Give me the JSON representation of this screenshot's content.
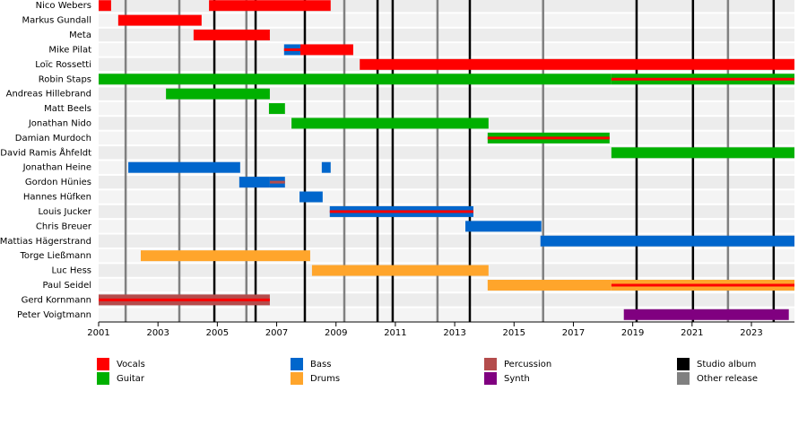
{
  "chart_data": {
    "type": "timeline",
    "xlim": [
      2001,
      2024.45
    ],
    "xticks": [
      2001,
      2003,
      2005,
      2007,
      2009,
      2011,
      2013,
      2015,
      2017,
      2019,
      2021,
      2023
    ],
    "roles": [
      {
        "name": "Vocals",
        "color": "#ff0000"
      },
      {
        "name": "Guitar",
        "color": "#00b000"
      },
      {
        "name": "Bass",
        "color": "#0066cc"
      },
      {
        "name": "Drums",
        "color": "#ffa52b"
      },
      {
        "name": "Percussion",
        "color": "#b44c4c"
      },
      {
        "name": "Synth",
        "color": "#800080"
      }
    ],
    "events": [
      {
        "name": "Studio album",
        "color": "#000000",
        "x": [
          2004.9,
          2006.29,
          2007.95,
          2010.4,
          2010.91,
          2013.51,
          2019.13,
          2021.03,
          2023.75
        ]
      },
      {
        "name": "Other release",
        "color": "#808080",
        "x": [
          2001.91,
          2003.72,
          2005.98,
          2009.28,
          2012.42,
          2015.98,
          2022.21
        ]
      }
    ],
    "members": [
      {
        "name": "Nico Webers",
        "bars": [
          {
            "role": "Vocals",
            "start": 2001,
            "end": 2001.42
          },
          {
            "role": "Vocals",
            "start": 2004.72,
            "end": 2008.82
          }
        ]
      },
      {
        "name": "Markus Gundall",
        "bars": [
          {
            "role": "Vocals",
            "start": 2001.66,
            "end": 2004.47
          }
        ]
      },
      {
        "name": "Meta",
        "bars": [
          {
            "role": "Vocals",
            "start": 2004.2,
            "end": 2006.77
          }
        ]
      },
      {
        "name": "Mike Pilat",
        "bars": [
          {
            "role": "Bass",
            "stripe": "Vocals",
            "start": 2007.25,
            "end": 2007.8
          },
          {
            "role": "Vocals",
            "start": 2007.8,
            "end": 2009.58
          }
        ]
      },
      {
        "name": "Loïc Rossetti",
        "bars": [
          {
            "role": "Vocals",
            "start": 2009.8,
            "end": 2024.45
          }
        ]
      },
      {
        "name": "Robin Staps",
        "bars": [
          {
            "role": "Guitar",
            "start": 2001,
            "end": 2018.28
          },
          {
            "role": "Guitar",
            "stripe": "Vocals",
            "start": 2018.28,
            "end": 2024.45
          }
        ]
      },
      {
        "name": "Andreas Hillebrand",
        "bars": [
          {
            "role": "Guitar",
            "start": 2003.27,
            "end": 2006.77
          }
        ]
      },
      {
        "name": "Matt Beels",
        "bars": [
          {
            "role": "Guitar",
            "start": 2006.74,
            "end": 2007.28
          }
        ]
      },
      {
        "name": "Jonathan Nido",
        "bars": [
          {
            "role": "Guitar",
            "start": 2007.5,
            "end": 2014.14
          }
        ]
      },
      {
        "name": "Damian Murdoch",
        "bars": [
          {
            "role": "Guitar",
            "stripe": "Vocals",
            "start": 2014.11,
            "end": 2018.22
          }
        ]
      },
      {
        "name": "David Ramis Åhfeldt",
        "bars": [
          {
            "role": "Guitar",
            "start": 2018.28,
            "end": 2024.45
          }
        ]
      },
      {
        "name": "Jonathan Heine",
        "bars": [
          {
            "role": "Bass",
            "start": 2002.0,
            "end": 2005.77
          },
          {
            "role": "Bass",
            "start": 2008.52,
            "end": 2008.82
          }
        ]
      },
      {
        "name": "Gordon Hünies",
        "bars": [
          {
            "role": "Bass",
            "start": 2005.74,
            "end": 2006.77
          },
          {
            "role": "Bass",
            "stripe": "Percussion",
            "start": 2006.77,
            "end": 2007.28
          }
        ]
      },
      {
        "name": "Hannes Hüfken",
        "bars": [
          {
            "role": "Bass",
            "start": 2007.77,
            "end": 2008.55
          }
        ]
      },
      {
        "name": "Louis Jucker",
        "bars": [
          {
            "role": "Bass",
            "stripe": "Vocals",
            "start": 2008.79,
            "end": 2013.63
          }
        ]
      },
      {
        "name": "Chris Breuer",
        "bars": [
          {
            "role": "Bass",
            "start": 2013.36,
            "end": 2015.92
          }
        ]
      },
      {
        "name": "Mattias Hägerstrand",
        "bars": [
          {
            "role": "Bass",
            "start": 2015.89,
            "end": 2024.45
          }
        ]
      },
      {
        "name": "Torge Ließmann",
        "bars": [
          {
            "role": "Drums",
            "start": 2002.42,
            "end": 2008.13
          }
        ]
      },
      {
        "name": "Luc Hess",
        "bars": [
          {
            "role": "Drums",
            "start": 2008.19,
            "end": 2014.14
          }
        ]
      },
      {
        "name": "Paul Seidel",
        "bars": [
          {
            "role": "Drums",
            "start": 2014.11,
            "end": 2018.28
          },
          {
            "role": "Drums",
            "stripe": "Vocals",
            "start": 2018.28,
            "end": 2024.45
          }
        ]
      },
      {
        "name": "Gerd Kornmann",
        "bars": [
          {
            "role": "Percussion",
            "stripe": "Vocals",
            "start": 2001,
            "end": 2006.77
          }
        ]
      },
      {
        "name": "Peter Voigtmann",
        "bars": [
          {
            "role": "Synth",
            "start": 2018.7,
            "end": 2024.26
          }
        ]
      }
    ]
  }
}
